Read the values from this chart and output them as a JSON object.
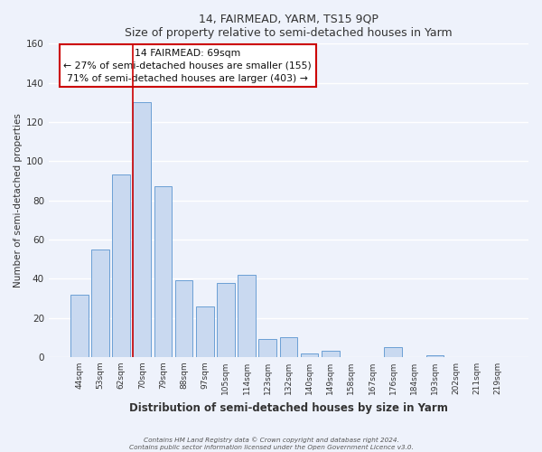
{
  "title": "14, FAIRMEAD, YARM, TS15 9QP",
  "subtitle": "Size of property relative to semi-detached houses in Yarm",
  "xlabel": "Distribution of semi-detached houses by size in Yarm",
  "ylabel": "Number of semi-detached properties",
  "bar_labels": [
    "44sqm",
    "53sqm",
    "62sqm",
    "70sqm",
    "79sqm",
    "88sqm",
    "97sqm",
    "105sqm",
    "114sqm",
    "123sqm",
    "132sqm",
    "140sqm",
    "149sqm",
    "158sqm",
    "167sqm",
    "176sqm",
    "184sqm",
    "193sqm",
    "202sqm",
    "211sqm",
    "219sqm"
  ],
  "bar_values": [
    32,
    55,
    93,
    130,
    87,
    39,
    26,
    38,
    42,
    9,
    10,
    2,
    3,
    0,
    0,
    5,
    0,
    1,
    0,
    0,
    0
  ],
  "bar_color": "#c9d9f0",
  "bar_edge_color": "#6b9fd4",
  "vline_color": "#cc0000",
  "annotation_title": "14 FAIRMEAD: 69sqm",
  "annotation_line1": "← 27% of semi-detached houses are smaller (155)",
  "annotation_line2": "71% of semi-detached houses are larger (403) →",
  "annotation_box_color": "#ffffff",
  "annotation_box_edge": "#cc0000",
  "ylim": [
    0,
    160
  ],
  "yticks": [
    0,
    20,
    40,
    60,
    80,
    100,
    120,
    140,
    160
  ],
  "footer_line1": "Contains HM Land Registry data © Crown copyright and database right 2024.",
  "footer_line2": "Contains public sector information licensed under the Open Government Licence v3.0.",
  "bg_color": "#eef2fb",
  "grid_color": "#ffffff"
}
